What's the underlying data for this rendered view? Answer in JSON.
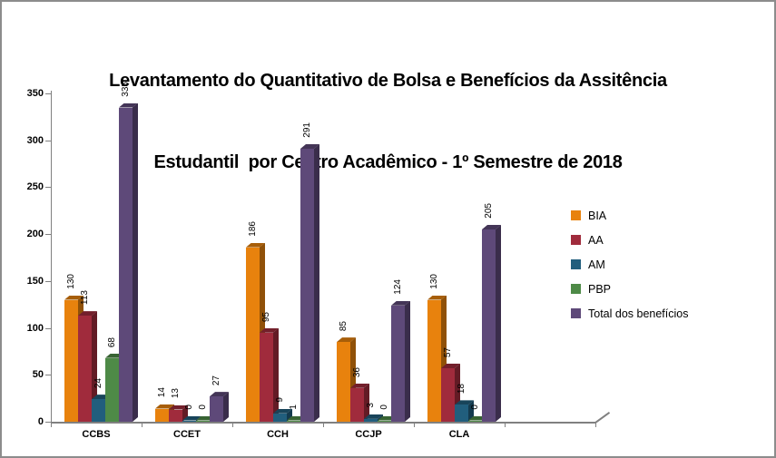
{
  "title": {
    "line1": "Levantamento do Quantitativo de Bolsa e Benefícios da Assitência",
    "line2": "Estudantil  por Centro Acadêmico - 1º Semestre de 2018"
  },
  "chart_data": {
    "type": "bar",
    "style": "3d-clustered-column",
    "title": "Levantamento do Quantitativo de Bolsa e Benefícios da Assitência Estudantil por Centro Acadêmico - 1º Semestre de 2018",
    "categories": [
      "CCBS",
      "CCET",
      "CCH",
      "CCJP",
      "CLA"
    ],
    "series": [
      {
        "name": "BIA",
        "color": "#E8820D",
        "values": [
          130,
          14,
          186,
          85,
          130
        ]
      },
      {
        "name": "AA",
        "color": "#A02B3C",
        "values": [
          113,
          13,
          95,
          36,
          57
        ]
      },
      {
        "name": "AM",
        "color": "#215E7D",
        "values": [
          24,
          0,
          9,
          3,
          18
        ]
      },
      {
        "name": "PBP",
        "color": "#4E8A47",
        "values": [
          68,
          0,
          1,
          0,
          0
        ]
      },
      {
        "name": "Total dos benefícios",
        "color": "#5E4979",
        "values": [
          335,
          27,
          291,
          124,
          205
        ]
      }
    ],
    "ylim": [
      0,
      350
    ],
    "yticks": [
      0,
      50,
      100,
      150,
      200,
      250,
      300,
      350
    ],
    "xlabel": "",
    "ylabel": "",
    "grid": false,
    "legend_position": "right",
    "value_labels": "rotated-vertical-above-bars",
    "axis_color": "#808080",
    "text_color": "#000000"
  }
}
